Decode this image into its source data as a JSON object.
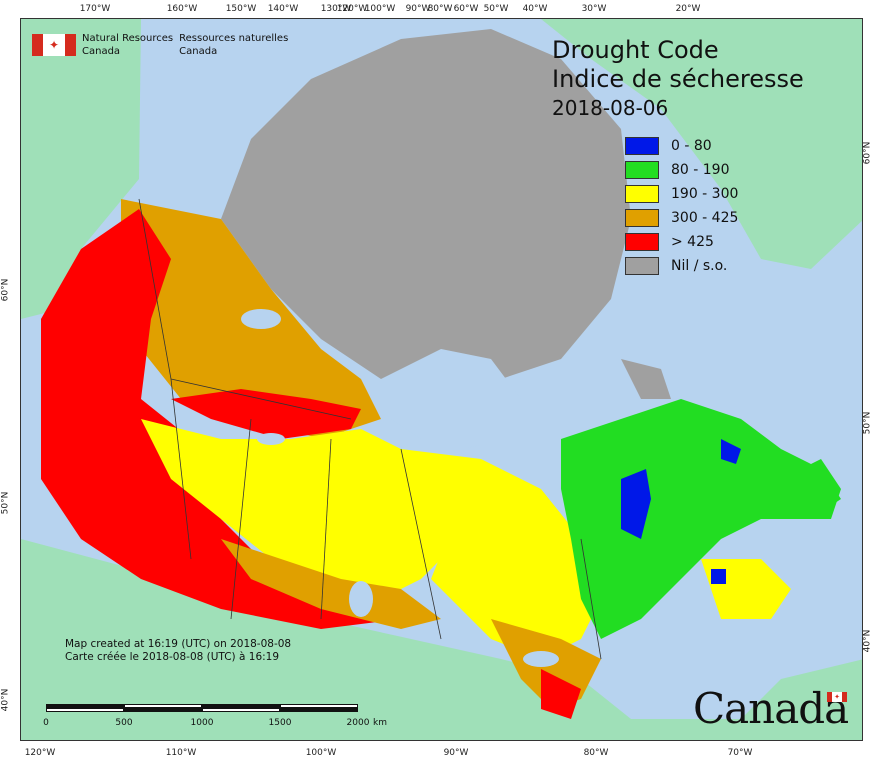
{
  "title": {
    "line1": "Drought Code",
    "line2": "Indice de sécheresse",
    "date": "2018-08-06"
  },
  "legend": [
    {
      "label": "0 - 80",
      "color": "#0018e8"
    },
    {
      "label": "80 - 190",
      "color": "#22dd22"
    },
    {
      "label": "190 - 300",
      "color": "#ffff00"
    },
    {
      "label": "300 - 425",
      "color": "#e0a000"
    },
    {
      "label": "> 425",
      "color": "#ff0000"
    },
    {
      "label": "Nil / s.o.",
      "color": "#a0a0a0"
    }
  ],
  "agency": {
    "en_line1": "Natural Resources",
    "en_line2": "Canada",
    "fr_line1": "Ressources naturelles",
    "fr_line2": "Canada"
  },
  "credit": {
    "en": "Map created at 16:19 (UTC) on 2018-08-08",
    "fr": "Carte créée le 2018-08-08 (UTC) à 16:19"
  },
  "scale": {
    "labels": [
      "0",
      "500",
      "1000",
      "1500",
      "2000"
    ],
    "unit": "km"
  },
  "wordmark": "Canada",
  "graticule": {
    "top_longitudes": [
      "170°W",
      "160°W",
      "150°W",
      "140°W",
      "130°W",
      "120°W",
      "100°W",
      "90°W",
      "80°W",
      "60°W",
      "50°W",
      "40°W",
      "30°W",
      "20°W"
    ],
    "bottom_longitudes": [
      "120°W",
      "110°W",
      "100°W",
      "90°W",
      "80°W",
      "70°W"
    ],
    "left_latitudes": [
      "60°N",
      "50°N",
      "40°N"
    ],
    "right_latitudes": [
      "60°N",
      "50°N",
      "40°N"
    ]
  },
  "colors": {
    "ocean": "#b7d3ef",
    "land_foreign": "#9fe0b8",
    "no_data": "#a0a0a0"
  }
}
